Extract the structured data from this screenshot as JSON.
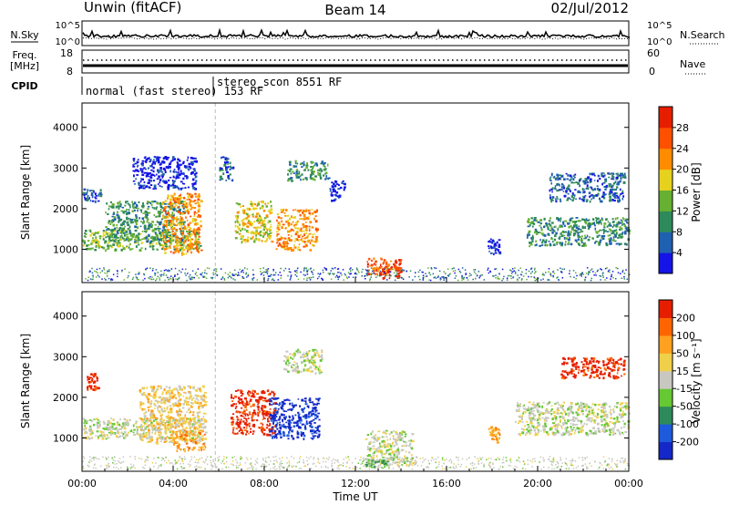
{
  "header": {
    "station": "Unwin (fitACF)",
    "beam": "Beam 14",
    "date": "02/Jul/2012"
  },
  "noise_panel": {
    "left_label": "N.Sky",
    "right_label": "N.Search",
    "tick_top": "10^5",
    "tick_bottom": "10^0"
  },
  "freq_panel": {
    "label_line1": "Freq.",
    "label_line2": "[MHz]",
    "tick_top": "18",
    "tick_bottom": "8",
    "right_label": "Nave",
    "right_tick_top": "60",
    "right_tick_bottom": "0"
  },
  "cpid_panel": {
    "label": "CPID",
    "segments": [
      {
        "start": 0.0,
        "text": "normal (fast stereo) 153 RF"
      },
      {
        "start": 5.85,
        "text": "stereo_scon 8551 RF"
      }
    ]
  },
  "chart_data": [
    {
      "type": "heatmap",
      "quantity": "Power",
      "ylabel": "Slant Range [km]",
      "xlabel": "",
      "ylim": [
        180,
        4600
      ],
      "yticks": [
        "1000",
        "2000",
        "3000",
        "4000"
      ],
      "ytick_values": [
        1000,
        2000,
        3000,
        4000
      ],
      "colorbar": {
        "label": "Power [dB]",
        "ticks": [
          "4",
          "8",
          "12",
          "16",
          "20",
          "24",
          "28"
        ],
        "colors": [
          "#1414e6",
          "#2060b0",
          "#2e8a5a",
          "#66b032",
          "#e6d21e",
          "#ff8c00",
          "#ff5000",
          "#e61e00"
        ]
      },
      "regions": [
        {
          "t0": 0.0,
          "t1": 5.2,
          "r0": 1000,
          "r1": 1500,
          "level": 3
        },
        {
          "t0": 1.0,
          "t1": 4.5,
          "r0": 1200,
          "r1": 2200,
          "level": 2
        },
        {
          "t0": 3.5,
          "t1": 5.2,
          "r0": 900,
          "r1": 2400,
          "level": 5
        },
        {
          "t0": 0.0,
          "t1": 0.8,
          "r0": 2200,
          "r1": 2500,
          "level": 1
        },
        {
          "t0": 2.2,
          "t1": 5.0,
          "r0": 2500,
          "r1": 3300,
          "level": 0
        },
        {
          "t0": 6.0,
          "t1": 6.6,
          "r0": 2700,
          "r1": 3300,
          "level": 1
        },
        {
          "t0": 6.7,
          "t1": 8.3,
          "r0": 1200,
          "r1": 2200,
          "level": 4
        },
        {
          "t0": 8.5,
          "t1": 10.3,
          "r0": 1000,
          "r1": 2000,
          "level": 5
        },
        {
          "t0": 9.0,
          "t1": 10.8,
          "r0": 2700,
          "r1": 3200,
          "level": 2
        },
        {
          "t0": 10.8,
          "t1": 11.5,
          "r0": 2200,
          "r1": 2700,
          "level": 0
        },
        {
          "t0": 12.5,
          "t1": 14.0,
          "r0": 400,
          "r1": 800,
          "level": 6
        },
        {
          "t0": 13.0,
          "t1": 14.0,
          "r0": 300,
          "r1": 600,
          "level": 7
        },
        {
          "t0": 17.8,
          "t1": 18.3,
          "r0": 900,
          "r1": 1300,
          "level": 0
        },
        {
          "t0": 19.5,
          "t1": 24.0,
          "r0": 1100,
          "r1": 1800,
          "level": 2
        },
        {
          "t0": 20.5,
          "t1": 23.8,
          "r0": 2200,
          "r1": 2900,
          "level": 1
        }
      ]
    },
    {
      "type": "heatmap",
      "quantity": "Velocity",
      "ylabel": "Slant Range [km]",
      "xlabel": "Time UT",
      "ylim": [
        180,
        4600
      ],
      "yticks": [
        "1000",
        "2000",
        "3000",
        "4000"
      ],
      "ytick_values": [
        1000,
        2000,
        3000,
        4000
      ],
      "xticks": [
        "00:00",
        "04:00",
        "08:00",
        "12:00",
        "16:00",
        "20:00",
        "00:00"
      ],
      "xtick_values": [
        0,
        4,
        8,
        12,
        16,
        20,
        24
      ],
      "xlim": [
        0,
        24
      ],
      "colorbar": {
        "label": "Velocity [m s⁻¹]",
        "ticks": [
          "200",
          "100",
          "50",
          "15",
          "-15",
          "-50",
          "-100",
          "-200"
        ],
        "colors": [
          "#1428c8",
          "#1e5adc",
          "#2e8a5a",
          "#66c832",
          "#c8c8c0",
          "#f0d04a",
          "#ffa01e",
          "#ff6400",
          "#e61e00"
        ]
      },
      "regions": [
        {
          "t0": 0.0,
          "t1": 5.2,
          "r0": 1000,
          "r1": 1500,
          "level": 4
        },
        {
          "t0": 2.5,
          "t1": 5.4,
          "r0": 900,
          "r1": 2300,
          "level": 5
        },
        {
          "t0": 4.0,
          "t1": 5.4,
          "r0": 700,
          "r1": 1200,
          "level": 6
        },
        {
          "t0": 0.2,
          "t1": 0.7,
          "r0": 2200,
          "r1": 2600,
          "level": 8
        },
        {
          "t0": 6.5,
          "t1": 8.5,
          "r0": 1100,
          "r1": 2200,
          "level": 8
        },
        {
          "t0": 8.2,
          "t1": 10.4,
          "r0": 1000,
          "r1": 2000,
          "level": 0
        },
        {
          "t0": 8.8,
          "t1": 10.5,
          "r0": 2600,
          "r1": 3200,
          "level": 4
        },
        {
          "t0": 12.4,
          "t1": 14.5,
          "r0": 350,
          "r1": 1200,
          "level": 4
        },
        {
          "t0": 12.4,
          "t1": 13.4,
          "r0": 300,
          "r1": 500,
          "level": 3
        },
        {
          "t0": 17.8,
          "t1": 18.3,
          "r0": 900,
          "r1": 1300,
          "level": 6
        },
        {
          "t0": 19.0,
          "t1": 24.0,
          "r0": 1100,
          "r1": 1900,
          "level": 4
        },
        {
          "t0": 21.0,
          "t1": 23.8,
          "r0": 2500,
          "r1": 3000,
          "level": 8
        }
      ]
    }
  ]
}
